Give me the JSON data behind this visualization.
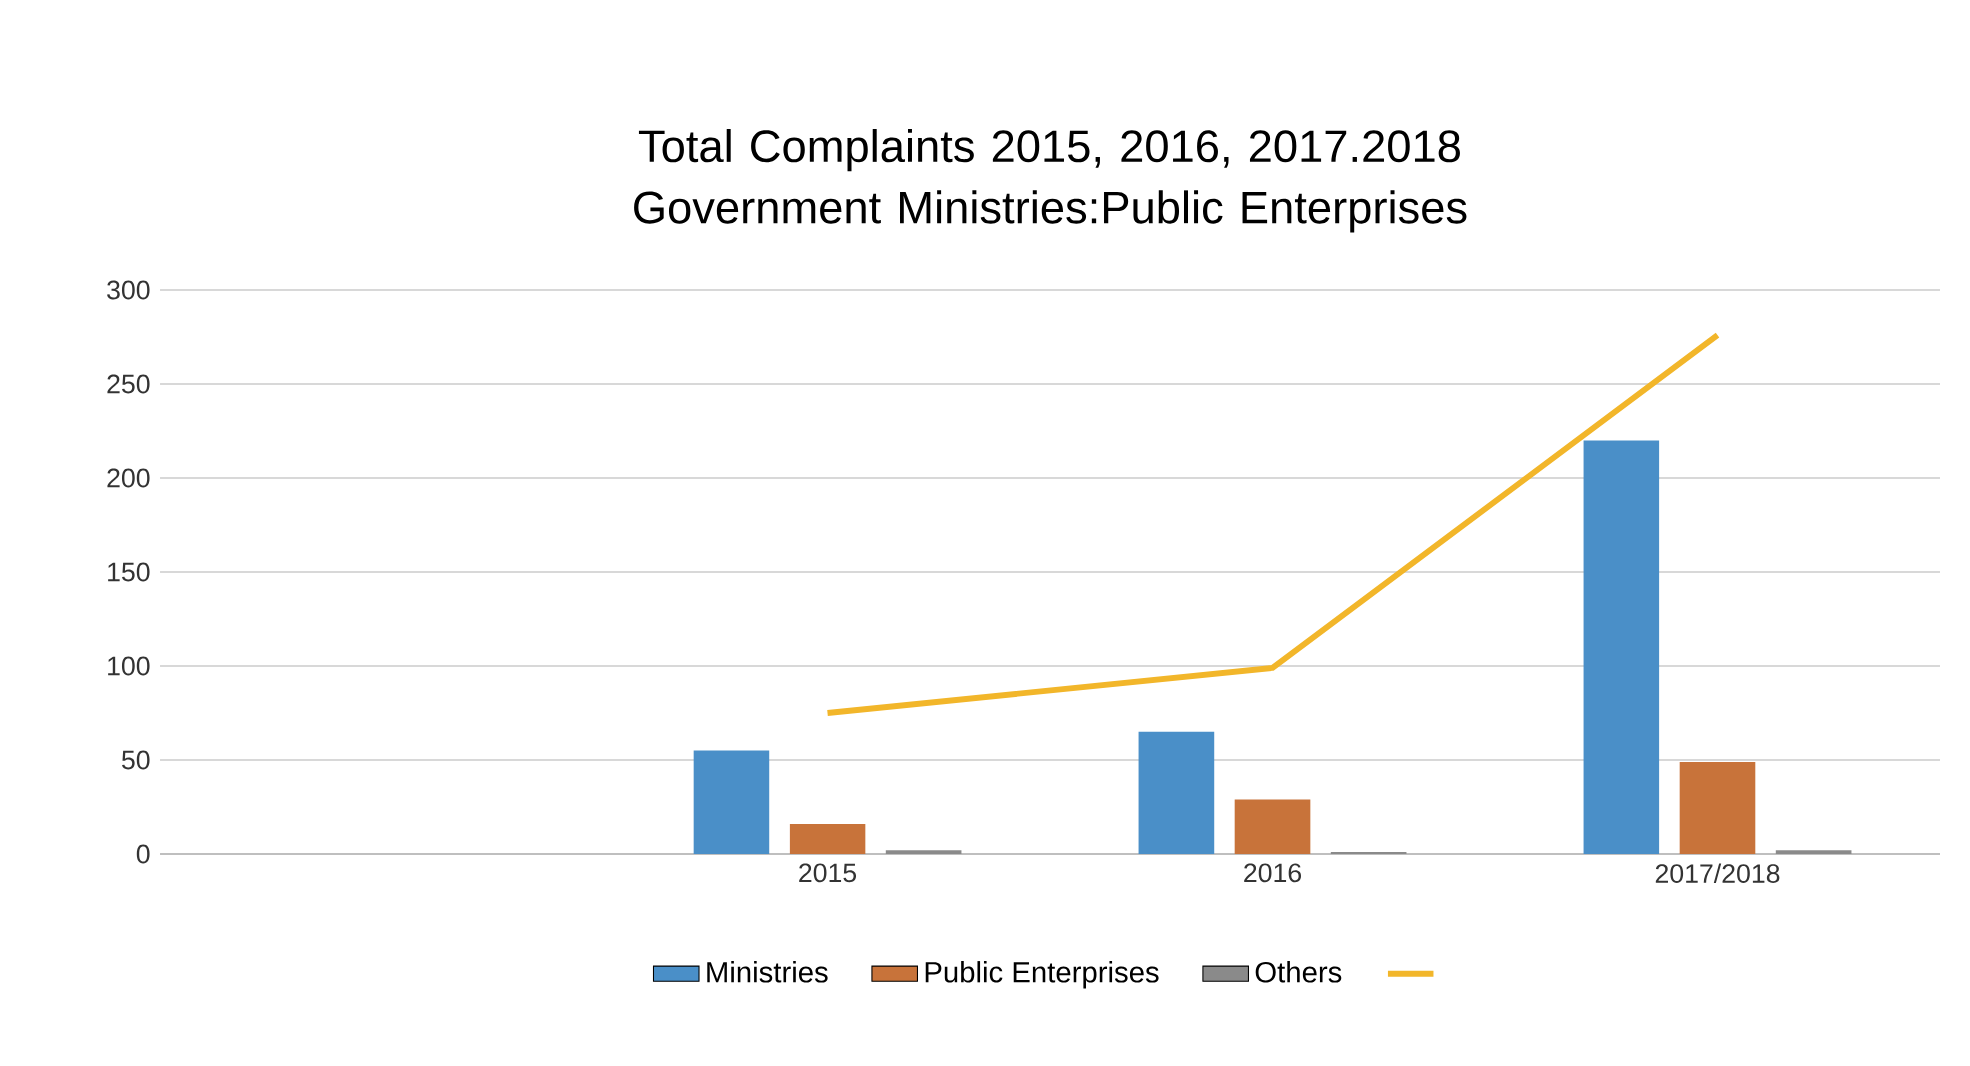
{
  "chart_data": {
    "type": "bar",
    "title": "Total Complaints 2015, 2016, 2017.2018 Government Ministries:Public Enterprises",
    "categories": [
      null,
      "2015",
      "2016",
      "2017/2018"
    ],
    "series": [
      {
        "name": "Ministries",
        "color": "#4a8fc8",
        "values": [
          null,
          55,
          65,
          220
        ]
      },
      {
        "name": "Public Enterprises",
        "color": "#c8733a",
        "values": [
          null,
          16,
          29,
          49
        ]
      },
      {
        "name": "Others",
        "color": "#8a8a8a",
        "values": [
          null,
          2,
          1,
          2
        ]
      },
      {
        "type": "line",
        "color": "#f2b62a",
        "values": [
          null,
          75,
          99,
          276
        ]
      }
    ],
    "ylim": [
      0,
      300
    ],
    "yticks": [
      0,
      50,
      100,
      150,
      200,
      250,
      300
    ],
    "grid": "y",
    "legend": "bottom"
  }
}
